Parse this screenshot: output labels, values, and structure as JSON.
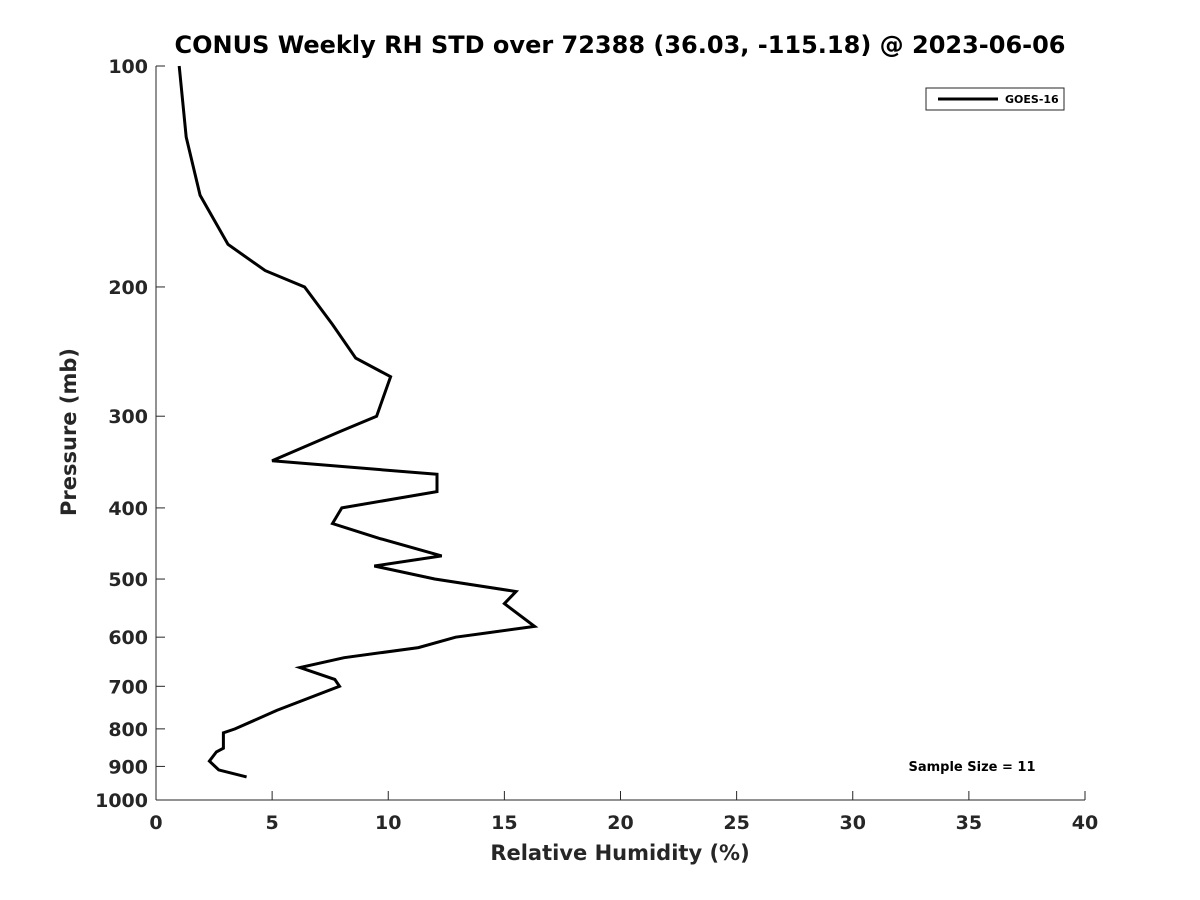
{
  "chart_data": {
    "type": "line",
    "title": "CONUS Weekly RH STD over 72388 (36.03, -115.18) @ 2023-06-06",
    "xlabel": "Relative Humidity (%)",
    "ylabel": "Pressure (mb)",
    "xlim": [
      0,
      40
    ],
    "ylim": [
      100,
      1000
    ],
    "yscale": "log",
    "y_reversed": true,
    "xticks": [
      0,
      5,
      10,
      15,
      20,
      25,
      30,
      35,
      40
    ],
    "xtick_labels": [
      "0",
      "5",
      "10",
      "15",
      "20",
      "25",
      "30",
      "35",
      "40"
    ],
    "yticks": [
      100,
      200,
      300,
      400,
      500,
      600,
      700,
      800,
      900,
      1000
    ],
    "ytick_labels": [
      "100",
      "200",
      "300",
      "400",
      "500",
      "600",
      "700",
      "800",
      "900",
      "1000"
    ],
    "grid": false,
    "legend_position": "top-right",
    "annotation": "Sample Size = 11",
    "series": [
      {
        "name": "GOES-16",
        "color": "#000000",
        "points": [
          {
            "x": 1.0,
            "y": 100
          },
          {
            "x": 1.3,
            "y": 125
          },
          {
            "x": 1.9,
            "y": 150
          },
          {
            "x": 3.1,
            "y": 175
          },
          {
            "x": 4.7,
            "y": 190
          },
          {
            "x": 6.4,
            "y": 200
          },
          {
            "x": 7.6,
            "y": 225
          },
          {
            "x": 8.6,
            "y": 250
          },
          {
            "x": 10.1,
            "y": 265
          },
          {
            "x": 9.5,
            "y": 300
          },
          {
            "x": 7.9,
            "y": 315
          },
          {
            "x": 5.0,
            "y": 345
          },
          {
            "x": 12.1,
            "y": 360
          },
          {
            "x": 12.1,
            "y": 380
          },
          {
            "x": 8.0,
            "y": 400
          },
          {
            "x": 7.6,
            "y": 420
          },
          {
            "x": 9.6,
            "y": 440
          },
          {
            "x": 12.3,
            "y": 465
          },
          {
            "x": 9.4,
            "y": 480
          },
          {
            "x": 12.0,
            "y": 500
          },
          {
            "x": 15.5,
            "y": 520
          },
          {
            "x": 15.0,
            "y": 540
          },
          {
            "x": 16.3,
            "y": 580
          },
          {
            "x": 12.9,
            "y": 600
          },
          {
            "x": 11.3,
            "y": 620
          },
          {
            "x": 8.1,
            "y": 640
          },
          {
            "x": 6.2,
            "y": 660
          },
          {
            "x": 7.7,
            "y": 685
          },
          {
            "x": 7.9,
            "y": 700
          },
          {
            "x": 5.2,
            "y": 755
          },
          {
            "x": 3.4,
            "y": 800
          },
          {
            "x": 2.9,
            "y": 810
          },
          {
            "x": 2.9,
            "y": 850
          },
          {
            "x": 2.6,
            "y": 860
          },
          {
            "x": 2.3,
            "y": 885
          },
          {
            "x": 2.7,
            "y": 910
          },
          {
            "x": 3.9,
            "y": 930
          }
        ]
      }
    ]
  }
}
